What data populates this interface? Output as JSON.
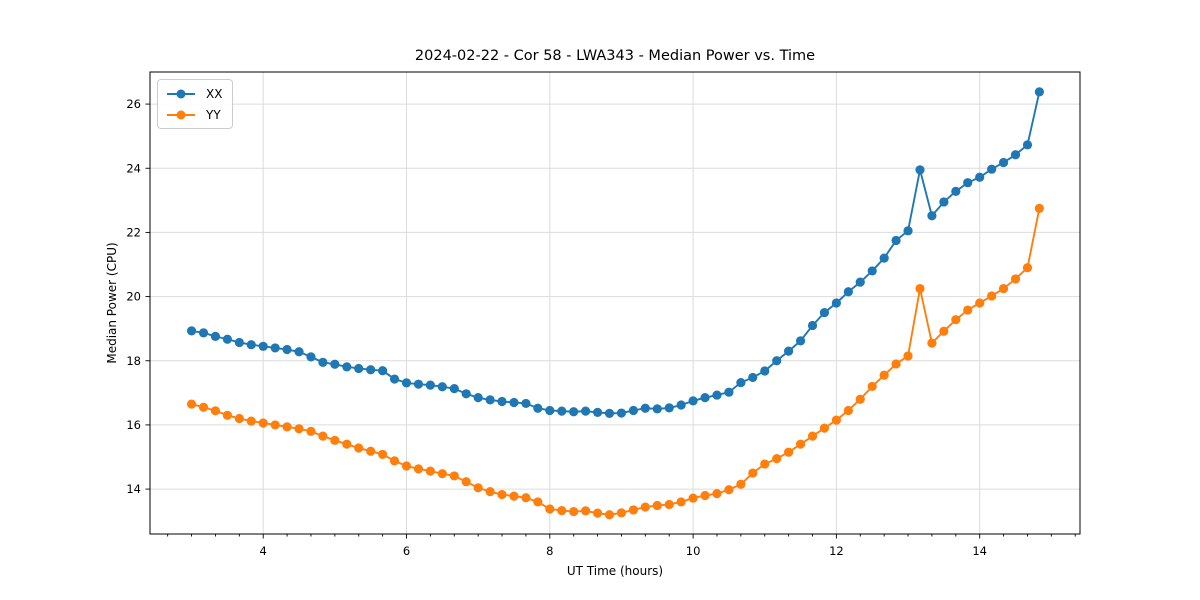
{
  "chart_data": {
    "type": "line",
    "title": "2024-02-22 - Cor 58 - LWA343 - Median Power vs. Time",
    "xlabel": "UT Time (hours)",
    "ylabel": "Median Power (CPU)",
    "xlim": [
      2.42,
      15.4
    ],
    "ylim": [
      12.6,
      27.0
    ],
    "x_major_ticks": [
      4,
      6,
      8,
      10,
      12,
      14
    ],
    "x_minor_tick_step": 0.3333333,
    "y_major_ticks": [
      14,
      16,
      18,
      20,
      22,
      24,
      26
    ],
    "grid": true,
    "grid_color": "#dcdcdc",
    "legend_position": "upper-left",
    "x": [
      3.0,
      3.167,
      3.333,
      3.5,
      3.667,
      3.833,
      4.0,
      4.167,
      4.333,
      4.5,
      4.667,
      4.833,
      5.0,
      5.167,
      5.333,
      5.5,
      5.667,
      5.833,
      6.0,
      6.167,
      6.333,
      6.5,
      6.667,
      6.833,
      7.0,
      7.167,
      7.333,
      7.5,
      7.667,
      7.833,
      8.0,
      8.167,
      8.333,
      8.5,
      8.667,
      8.833,
      9.0,
      9.167,
      9.333,
      9.5,
      9.667,
      9.833,
      10.0,
      10.167,
      10.333,
      10.5,
      10.667,
      10.833,
      11.0,
      11.167,
      11.333,
      11.5,
      11.667,
      11.833,
      12.0,
      12.167,
      12.333,
      12.5,
      12.667,
      12.833,
      13.0,
      13.167,
      13.333,
      13.5,
      13.667,
      13.833,
      14.0,
      14.167,
      14.333,
      14.5,
      14.667,
      14.833
    ],
    "series": [
      {
        "name": "XX",
        "color": "#1f77b4",
        "values": [
          18.93,
          18.87,
          18.76,
          18.67,
          18.57,
          18.5,
          18.45,
          18.4,
          18.35,
          18.28,
          18.12,
          17.95,
          17.89,
          17.81,
          17.76,
          17.72,
          17.69,
          17.43,
          17.31,
          17.27,
          17.24,
          17.19,
          17.13,
          16.97,
          16.85,
          16.78,
          16.73,
          16.7,
          16.67,
          16.52,
          16.45,
          16.43,
          16.41,
          16.43,
          16.39,
          16.36,
          16.37,
          16.45,
          16.52,
          16.5,
          16.53,
          16.62,
          16.75,
          16.85,
          16.93,
          17.02,
          17.32,
          17.48,
          17.68,
          18.0,
          18.3,
          18.62,
          19.1,
          19.5,
          19.8,
          20.15,
          20.45,
          20.8,
          21.2,
          21.75,
          22.05,
          23.95,
          22.52,
          22.95,
          23.28,
          23.55,
          23.72,
          23.97,
          24.18,
          24.42,
          24.73,
          26.38
        ]
      },
      {
        "name": "YY",
        "color": "#ff7f0e",
        "values": [
          16.65,
          16.55,
          16.44,
          16.3,
          16.2,
          16.12,
          16.06,
          16.0,
          15.94,
          15.88,
          15.8,
          15.65,
          15.52,
          15.4,
          15.28,
          15.18,
          15.08,
          14.88,
          14.72,
          14.63,
          14.56,
          14.48,
          14.41,
          14.23,
          14.04,
          13.92,
          13.83,
          13.78,
          13.73,
          13.6,
          13.38,
          13.33,
          13.3,
          13.32,
          13.25,
          13.2,
          13.26,
          13.35,
          13.44,
          13.49,
          13.52,
          13.6,
          13.72,
          13.8,
          13.86,
          13.98,
          14.15,
          14.5,
          14.78,
          14.95,
          15.15,
          15.4,
          15.65,
          15.9,
          16.15,
          16.45,
          16.8,
          17.2,
          17.55,
          17.9,
          18.15,
          20.25,
          18.55,
          18.92,
          19.28,
          19.58,
          19.8,
          20.02,
          20.25,
          20.55,
          20.9,
          22.75
        ]
      }
    ]
  }
}
